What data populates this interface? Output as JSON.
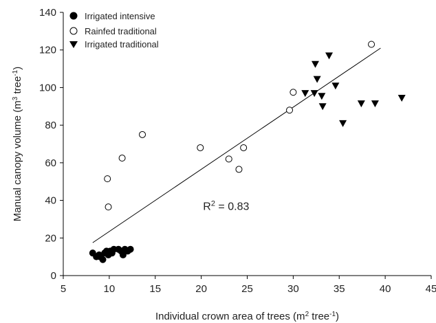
{
  "chart_data": {
    "type": "scatter",
    "xlabel": {
      "prefix": "Individual crown area of trees (m",
      "sup": "2",
      "mid": " tree",
      "sup2": "-1",
      "suffix": ")"
    },
    "ylabel": {
      "prefix": "Manual canopy volume  (m",
      "sup": "3",
      "mid": " tree",
      "sup2": "-1",
      "suffix": ")"
    },
    "xlim": [
      5,
      45
    ],
    "ylim": [
      0,
      140
    ],
    "xticks": [
      "5",
      "10",
      "15",
      "20",
      "25",
      "30",
      "35",
      "40",
      "45"
    ],
    "yticks": [
      "0",
      "20",
      "40",
      "60",
      "80",
      "100",
      "120",
      "140"
    ],
    "legend_position": "top-left",
    "series": [
      {
        "name": "Irrigated intensive",
        "marker": "filled-circle",
        "color": "#000000",
        "x": [
          8.2,
          8.6,
          8.9,
          9.3,
          9.7,
          9.9,
          10.1,
          10.3,
          10.5,
          11.0,
          11.3,
          11.5,
          11.7,
          12.0,
          12.3,
          9.0,
          9.5
        ],
        "y": [
          12,
          10,
          11,
          8.5,
          13,
          11,
          13,
          12,
          14,
          14,
          13,
          11,
          14,
          13,
          14,
          10,
          12
        ]
      },
      {
        "name": "Rainfed traditional",
        "marker": "open-circle",
        "color": "#000000",
        "x": [
          9.8,
          9.9,
          11.4,
          13.6,
          19.9,
          23.0,
          24.1,
          24.6,
          29.6,
          30.0,
          38.5
        ],
        "y": [
          51.5,
          36.5,
          62.5,
          75,
          68,
          62,
          56.5,
          68,
          88,
          97.5,
          123
        ]
      },
      {
        "name": "Irrigated traditional",
        "marker": "filled-triangle-down",
        "color": "#000000",
        "x": [
          31.3,
          32.3,
          32.4,
          32.6,
          33.1,
          33.2,
          33.9,
          34.6,
          35.4,
          37.4,
          38.9,
          41.8
        ],
        "y": [
          97,
          97,
          112.5,
          104.5,
          95.5,
          90,
          117,
          101,
          81,
          91.5,
          91.5,
          94.5
        ]
      }
    ],
    "fit_line": {
      "x": [
        8.2,
        39.5
      ],
      "y": [
        17.5,
        121
      ]
    },
    "annotation": {
      "prefix": "R",
      "sup": "2",
      "suffix": " = 0.83",
      "x": 20.2,
      "y": 35
    }
  }
}
